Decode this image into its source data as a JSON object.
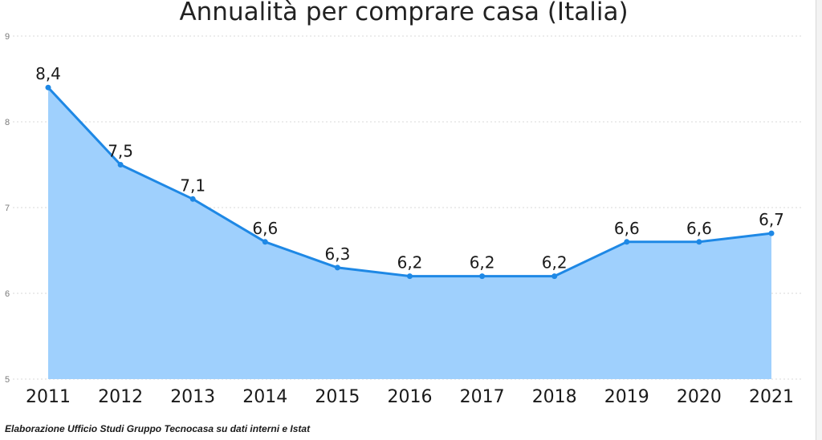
{
  "chart_data": {
    "type": "area",
    "title": "Annualità per comprare casa (Italia)",
    "xlabel": "",
    "ylabel": "",
    "categories": [
      "2011",
      "2012",
      "2013",
      "2014",
      "2015",
      "2016",
      "2017",
      "2018",
      "2019",
      "2020",
      "2021"
    ],
    "values": [
      8.4,
      7.5,
      7.1,
      6.6,
      6.3,
      6.2,
      6.2,
      6.2,
      6.6,
      6.6,
      6.7
    ],
    "data_labels": [
      "8,4",
      "7,5",
      "7,1",
      "6,6",
      "6,3",
      "6,2",
      "6,2",
      "6,2",
      "6,6",
      "6,6",
      "6,7"
    ],
    "ylim": [
      5,
      9
    ],
    "y_ticks": [
      "5",
      "6",
      "7",
      "8",
      "9"
    ],
    "grid": true,
    "legend": "none",
    "colors": {
      "line": "#1e88e5",
      "fill": "#9fd0fd",
      "grid": "#d9d9d9"
    }
  },
  "footer": {
    "source": "Elaborazione Ufficio Studi Gruppo Tecnocasa su dati interni e Istat"
  }
}
